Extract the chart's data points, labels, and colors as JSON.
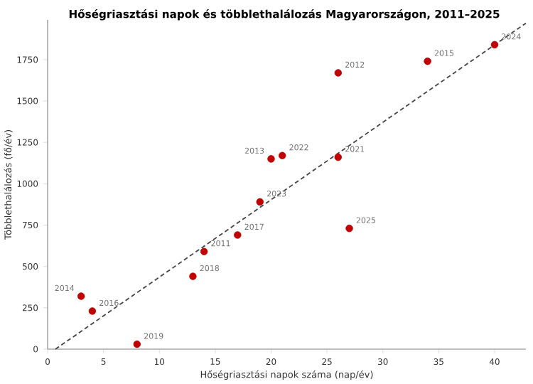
{
  "chart_data": {
    "type": "scatter",
    "title": "Hőségriasztási napok és többlethalálozás Magyarországon, 2011–2025",
    "xlabel": "Hőségriasztási napok száma (nap/év)",
    "ylabel": "Többlethalálozás (fő/év)",
    "xlim": [
      0,
      42.8
    ],
    "ylim": [
      0,
      1990
    ],
    "xticks": [
      0,
      5,
      10,
      15,
      20,
      25,
      30,
      35,
      40
    ],
    "yticks": [
      0,
      250,
      500,
      750,
      1000,
      1250,
      1500,
      1750
    ],
    "grid": false,
    "series": [
      {
        "color": "#c00000",
        "marker": "circle",
        "x": [
          14,
          26,
          20,
          3,
          34,
          4,
          17,
          13,
          8,
          26,
          21,
          19,
          40,
          27
        ],
        "values": [
          590,
          1670,
          1150,
          320,
          1740,
          230,
          690,
          440,
          30,
          1160,
          1170,
          890,
          1840,
          730
        ]
      },
      {
        "type": "line",
        "color": "#444444",
        "line_style": "dashed",
        "marker": "none",
        "x": [
          0.7,
          42.8
        ],
        "values": [
          0,
          1970
        ]
      }
    ],
    "annotations": [
      {
        "text": "2011",
        "x": 14,
        "y": 590
      },
      {
        "text": "2012",
        "x": 26,
        "y": 1670
      },
      {
        "text": "2013",
        "x": 20,
        "y": 1150
      },
      {
        "text": "2014",
        "x": 3,
        "y": 320
      },
      {
        "text": "2015",
        "x": 34,
        "y": 1740
      },
      {
        "text": "2016",
        "x": 4,
        "y": 230
      },
      {
        "text": "2017",
        "x": 17,
        "y": 690
      },
      {
        "text": "2018",
        "x": 13,
        "y": 440
      },
      {
        "text": "2019",
        "x": 8,
        "y": 30
      },
      {
        "text": "2021",
        "x": 26,
        "y": 1160
      },
      {
        "text": "2022",
        "x": 21,
        "y": 1170
      },
      {
        "text": "2023",
        "x": 19,
        "y": 890
      },
      {
        "text": "2024",
        "x": 40,
        "y": 1840
      },
      {
        "text": "2025",
        "x": 27,
        "y": 730
      }
    ]
  }
}
